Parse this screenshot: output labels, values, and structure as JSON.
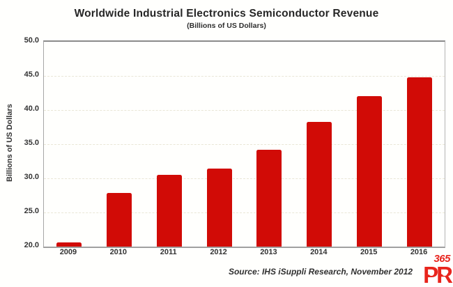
{
  "title": "Worldwide Industrial Electronics Semiconductor Revenue",
  "subtitle": "(Billions of US Dollars)",
  "y_axis_label": "Billions of US Dollars",
  "source_caption": "Source: IHS iSuppli Research, November 2012",
  "logo": {
    "top_text": "365",
    "letters": "PR",
    "color": "#e8251d"
  },
  "colors": {
    "bar": "#d10b06",
    "title_text": "#262626",
    "axis_text": "#333333",
    "gridline": "#e9e6d6",
    "plot_border": "#9a9a9a",
    "background": "#fffffd"
  },
  "chart_data": {
    "type": "bar",
    "title": "Worldwide Industrial Electronics Semiconductor Revenue",
    "subtitle": "(Billions of US Dollars)",
    "categories": [
      "2009",
      "2010",
      "2011",
      "2012",
      "2013",
      "2014",
      "2015",
      "2016"
    ],
    "values": [
      20.6,
      27.9,
      30.5,
      31.4,
      34.2,
      38.3,
      42.0,
      44.8
    ],
    "xlabel": "",
    "ylabel": "Billions of US Dollars",
    "ylim": [
      20.0,
      50.0
    ],
    "ytick_step": 5.0,
    "yticks": [
      "50.0",
      "45.0",
      "40.0",
      "35.0",
      "30.0",
      "25.0",
      "20.0"
    ],
    "grid": true,
    "legend": false,
    "bar_color": "#d10b06",
    "source": "Source: IHS iSuppli Research, November 2012"
  }
}
